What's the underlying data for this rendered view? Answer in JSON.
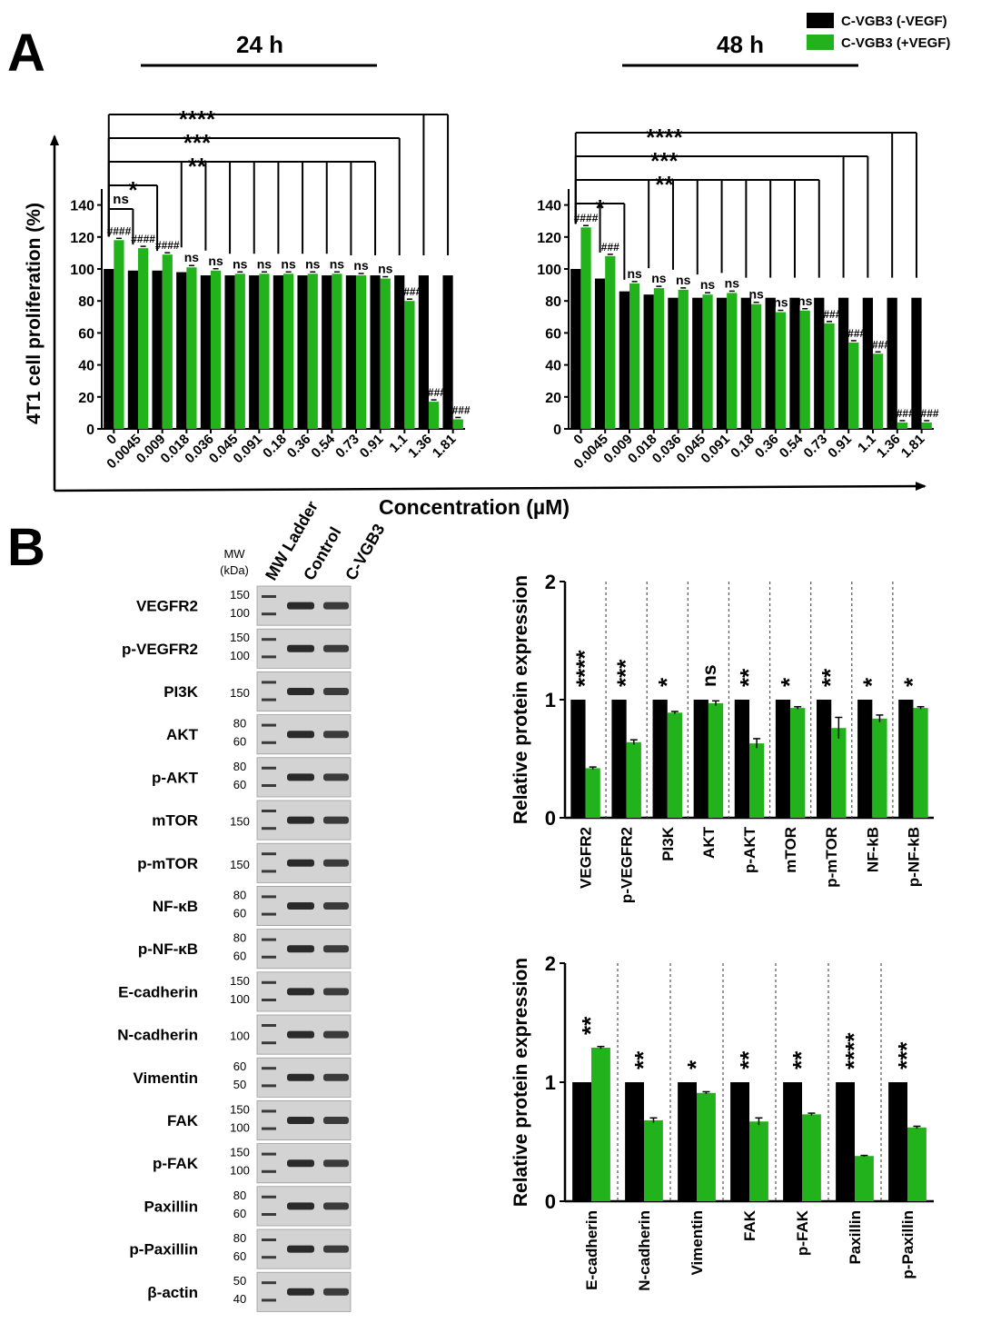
{
  "panels": {
    "a_label": "A",
    "b_label": "B"
  },
  "legend": {
    "entries": [
      {
        "label": "C-VGB3 (-VEGF)",
        "color": "#000000"
      },
      {
        "label": "C-VGB3 (+VEGF)",
        "color": "#22b31c"
      }
    ]
  },
  "colors": {
    "black_series": "#000000",
    "green_series": "#22b31c",
    "axis": "#000000"
  },
  "chart_data": [
    {
      "type": "bar",
      "id": "proliferation_24h",
      "title": "24 h",
      "xlabel": "Concentration (µM)",
      "ylabel": "4T1 cell proliferation (%)",
      "ylim": [
        0,
        150
      ],
      "yticks": [
        0,
        20,
        40,
        60,
        80,
        100,
        120,
        140
      ],
      "categories": [
        "0",
        "0.0045",
        "0.009",
        "0.018",
        "0.036",
        "0.045",
        "0.091",
        "0.18",
        "0.36",
        "0.54",
        "0.73",
        "0.91",
        "1.1",
        "1.36",
        "1.81"
      ],
      "series": [
        {
          "name": "C-VGB3 (-VEGF)",
          "values": [
            100,
            99,
            99,
            98,
            96,
            96,
            96,
            96,
            96,
            96,
            96,
            96,
            96,
            96,
            96
          ]
        },
        {
          "name": "C-VGB3 (+VEGF)",
          "values": [
            118,
            113,
            109,
            101,
            99,
            97,
            97,
            97,
            97,
            97,
            96,
            94,
            80,
            17,
            6
          ]
        }
      ],
      "green_labels": [
        "####",
        "####",
        "####",
        "ns",
        "ns",
        "ns",
        "ns",
        "ns",
        "ns",
        "ns",
        "ns",
        "ns",
        "####",
        "####",
        "####"
      ],
      "brackets": [
        {
          "label": "ns",
          "to": 1
        },
        {
          "label": "*",
          "to": 2
        },
        {
          "label": "**",
          "to": 11
        },
        {
          "label": "***",
          "to": 12
        },
        {
          "label": "****",
          "to": 14
        }
      ]
    },
    {
      "type": "bar",
      "id": "proliferation_48h",
      "title": "48 h",
      "xlabel": "Concentration (µM)",
      "ylabel": "4T1 cell proliferation (%)",
      "ylim": [
        0,
        150
      ],
      "yticks": [
        0,
        20,
        40,
        60,
        80,
        100,
        120,
        140
      ],
      "categories": [
        "0",
        "0.0045",
        "0.009",
        "0.018",
        "0.036",
        "0.045",
        "0.091",
        "0.18",
        "0.36",
        "0.54",
        "0.73",
        "0.91",
        "1.1",
        "1.36",
        "1.81"
      ],
      "series": [
        {
          "name": "C-VGB3 (-VEGF)",
          "values": [
            100,
            94,
            86,
            84,
            82,
            82,
            82,
            82,
            82,
            82,
            82,
            82,
            82,
            82,
            82
          ]
        },
        {
          "name": "C-VGB3 (+VEGF)",
          "values": [
            126,
            108,
            91,
            88,
            87,
            84,
            85,
            78,
            73,
            74,
            66,
            54,
            47,
            4,
            4
          ]
        }
      ],
      "green_labels": [
        "####",
        "###",
        "ns",
        "ns",
        "ns",
        "ns",
        "ns",
        "ns",
        "ns",
        "ns",
        "####",
        "####",
        "####",
        "####",
        "####"
      ],
      "brackets": [
        {
          "label": "*",
          "to": 2
        },
        {
          "label": "**",
          "to": 10
        },
        {
          "label": "***",
          "to": 12
        },
        {
          "label": "****",
          "to": 14
        }
      ]
    },
    {
      "type": "bar",
      "id": "protein_signaling",
      "title": "",
      "xlabel": "",
      "ylabel": "Relative protein expression",
      "ylim": [
        0,
        2
      ],
      "yticks": [
        0,
        1,
        2
      ],
      "categories": [
        "VEGFR2",
        "p-VEGFR2",
        "PI3K",
        "AKT",
        "p-AKT",
        "mTOR",
        "p-mTOR",
        "NF-kB",
        "p-NF-kB"
      ],
      "series": [
        {
          "name": "Control",
          "values": [
            1,
            1,
            1,
            1,
            1,
            1,
            1,
            1,
            1
          ]
        },
        {
          "name": "C-VGB3",
          "values": [
            0.42,
            0.64,
            0.89,
            0.97,
            0.63,
            0.93,
            0.76,
            0.84,
            0.93
          ]
        }
      ],
      "errors": [
        0.01,
        0.02,
        0.01,
        0.02,
        0.04,
        0.01,
        0.09,
        0.03,
        0.01
      ],
      "significance": [
        "****",
        "***",
        "*",
        "ns",
        "**",
        "*",
        "**",
        "*",
        "*"
      ]
    },
    {
      "type": "bar",
      "id": "protein_emt",
      "title": "",
      "xlabel": "",
      "ylabel": "Relative protein expression",
      "ylim": [
        0,
        2
      ],
      "yticks": [
        0,
        1,
        2
      ],
      "categories": [
        "E-cadherin",
        "N-cadherin",
        "Vimentin",
        "FAK",
        "p-FAK",
        "Paxillin",
        "p-Paxillin"
      ],
      "series": [
        {
          "name": "Control",
          "values": [
            1,
            1,
            1,
            1,
            1,
            1,
            1
          ]
        },
        {
          "name": "C-VGB3",
          "values": [
            1.29,
            0.68,
            0.91,
            0.67,
            0.73,
            0.38,
            0.62
          ]
        }
      ],
      "errors": [
        0.01,
        0.02,
        0.01,
        0.03,
        0.01,
        0.005,
        0.01
      ],
      "significance": [
        "**",
        "**",
        "*",
        "**",
        "**",
        "****",
        "***"
      ]
    }
  ],
  "western_blot": {
    "mw_header": "MW",
    "mw_unit": "(kDa)",
    "lane_labels": [
      "MW Ladder",
      "Control",
      "C-VGB3"
    ],
    "rows": [
      {
        "name": "VEGFR2",
        "mw": [
          "150",
          "100"
        ]
      },
      {
        "name": "p-VEGFR2",
        "mw": [
          "150",
          "100"
        ]
      },
      {
        "name": "PI3K",
        "mw": [
          "150"
        ]
      },
      {
        "name": "AKT",
        "mw": [
          "80",
          "60"
        ]
      },
      {
        "name": "p-AKT",
        "mw": [
          "80",
          "60"
        ]
      },
      {
        "name": "mTOR",
        "mw": [
          "150"
        ]
      },
      {
        "name": "p-mTOR",
        "mw": [
          "150"
        ]
      },
      {
        "name": "NF-κB",
        "mw": [
          "80",
          "60"
        ]
      },
      {
        "name": "p-NF-κB",
        "mw": [
          "80",
          "60"
        ]
      },
      {
        "name": "E-cadherin",
        "mw": [
          "150",
          "100"
        ]
      },
      {
        "name": "N-cadherin",
        "mw": [
          "100"
        ]
      },
      {
        "name": "Vimentin",
        "mw": [
          "60",
          "50"
        ]
      },
      {
        "name": "FAK",
        "mw": [
          "150",
          "100"
        ]
      },
      {
        "name": "p-FAK",
        "mw": [
          "150",
          "100"
        ]
      },
      {
        "name": "Paxillin",
        "mw": [
          "80",
          "60"
        ]
      },
      {
        "name": "p-Paxillin",
        "mw": [
          "80",
          "60"
        ]
      },
      {
        "name": "β-actin",
        "mw": [
          "50",
          "40"
        ]
      }
    ]
  }
}
